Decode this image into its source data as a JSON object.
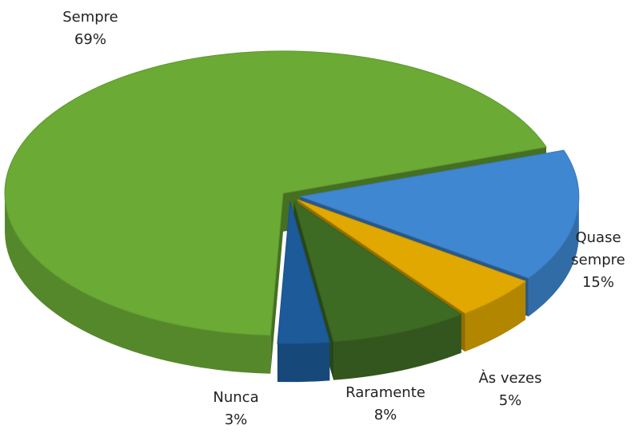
{
  "chart_data": {
    "type": "pie",
    "categories": [
      "Sempre",
      "Quase sempre",
      "Às vezes",
      "Raramente",
      "Nunca"
    ],
    "values": [
      69,
      15,
      5,
      8,
      3
    ],
    "value_labels": [
      "69%",
      "15%",
      "5%",
      "8%",
      "3%"
    ],
    "colors": [
      "#6aaa35",
      "#3f87d0",
      "#e0a800",
      "#3e6b24",
      "#1c5a99"
    ]
  }
}
